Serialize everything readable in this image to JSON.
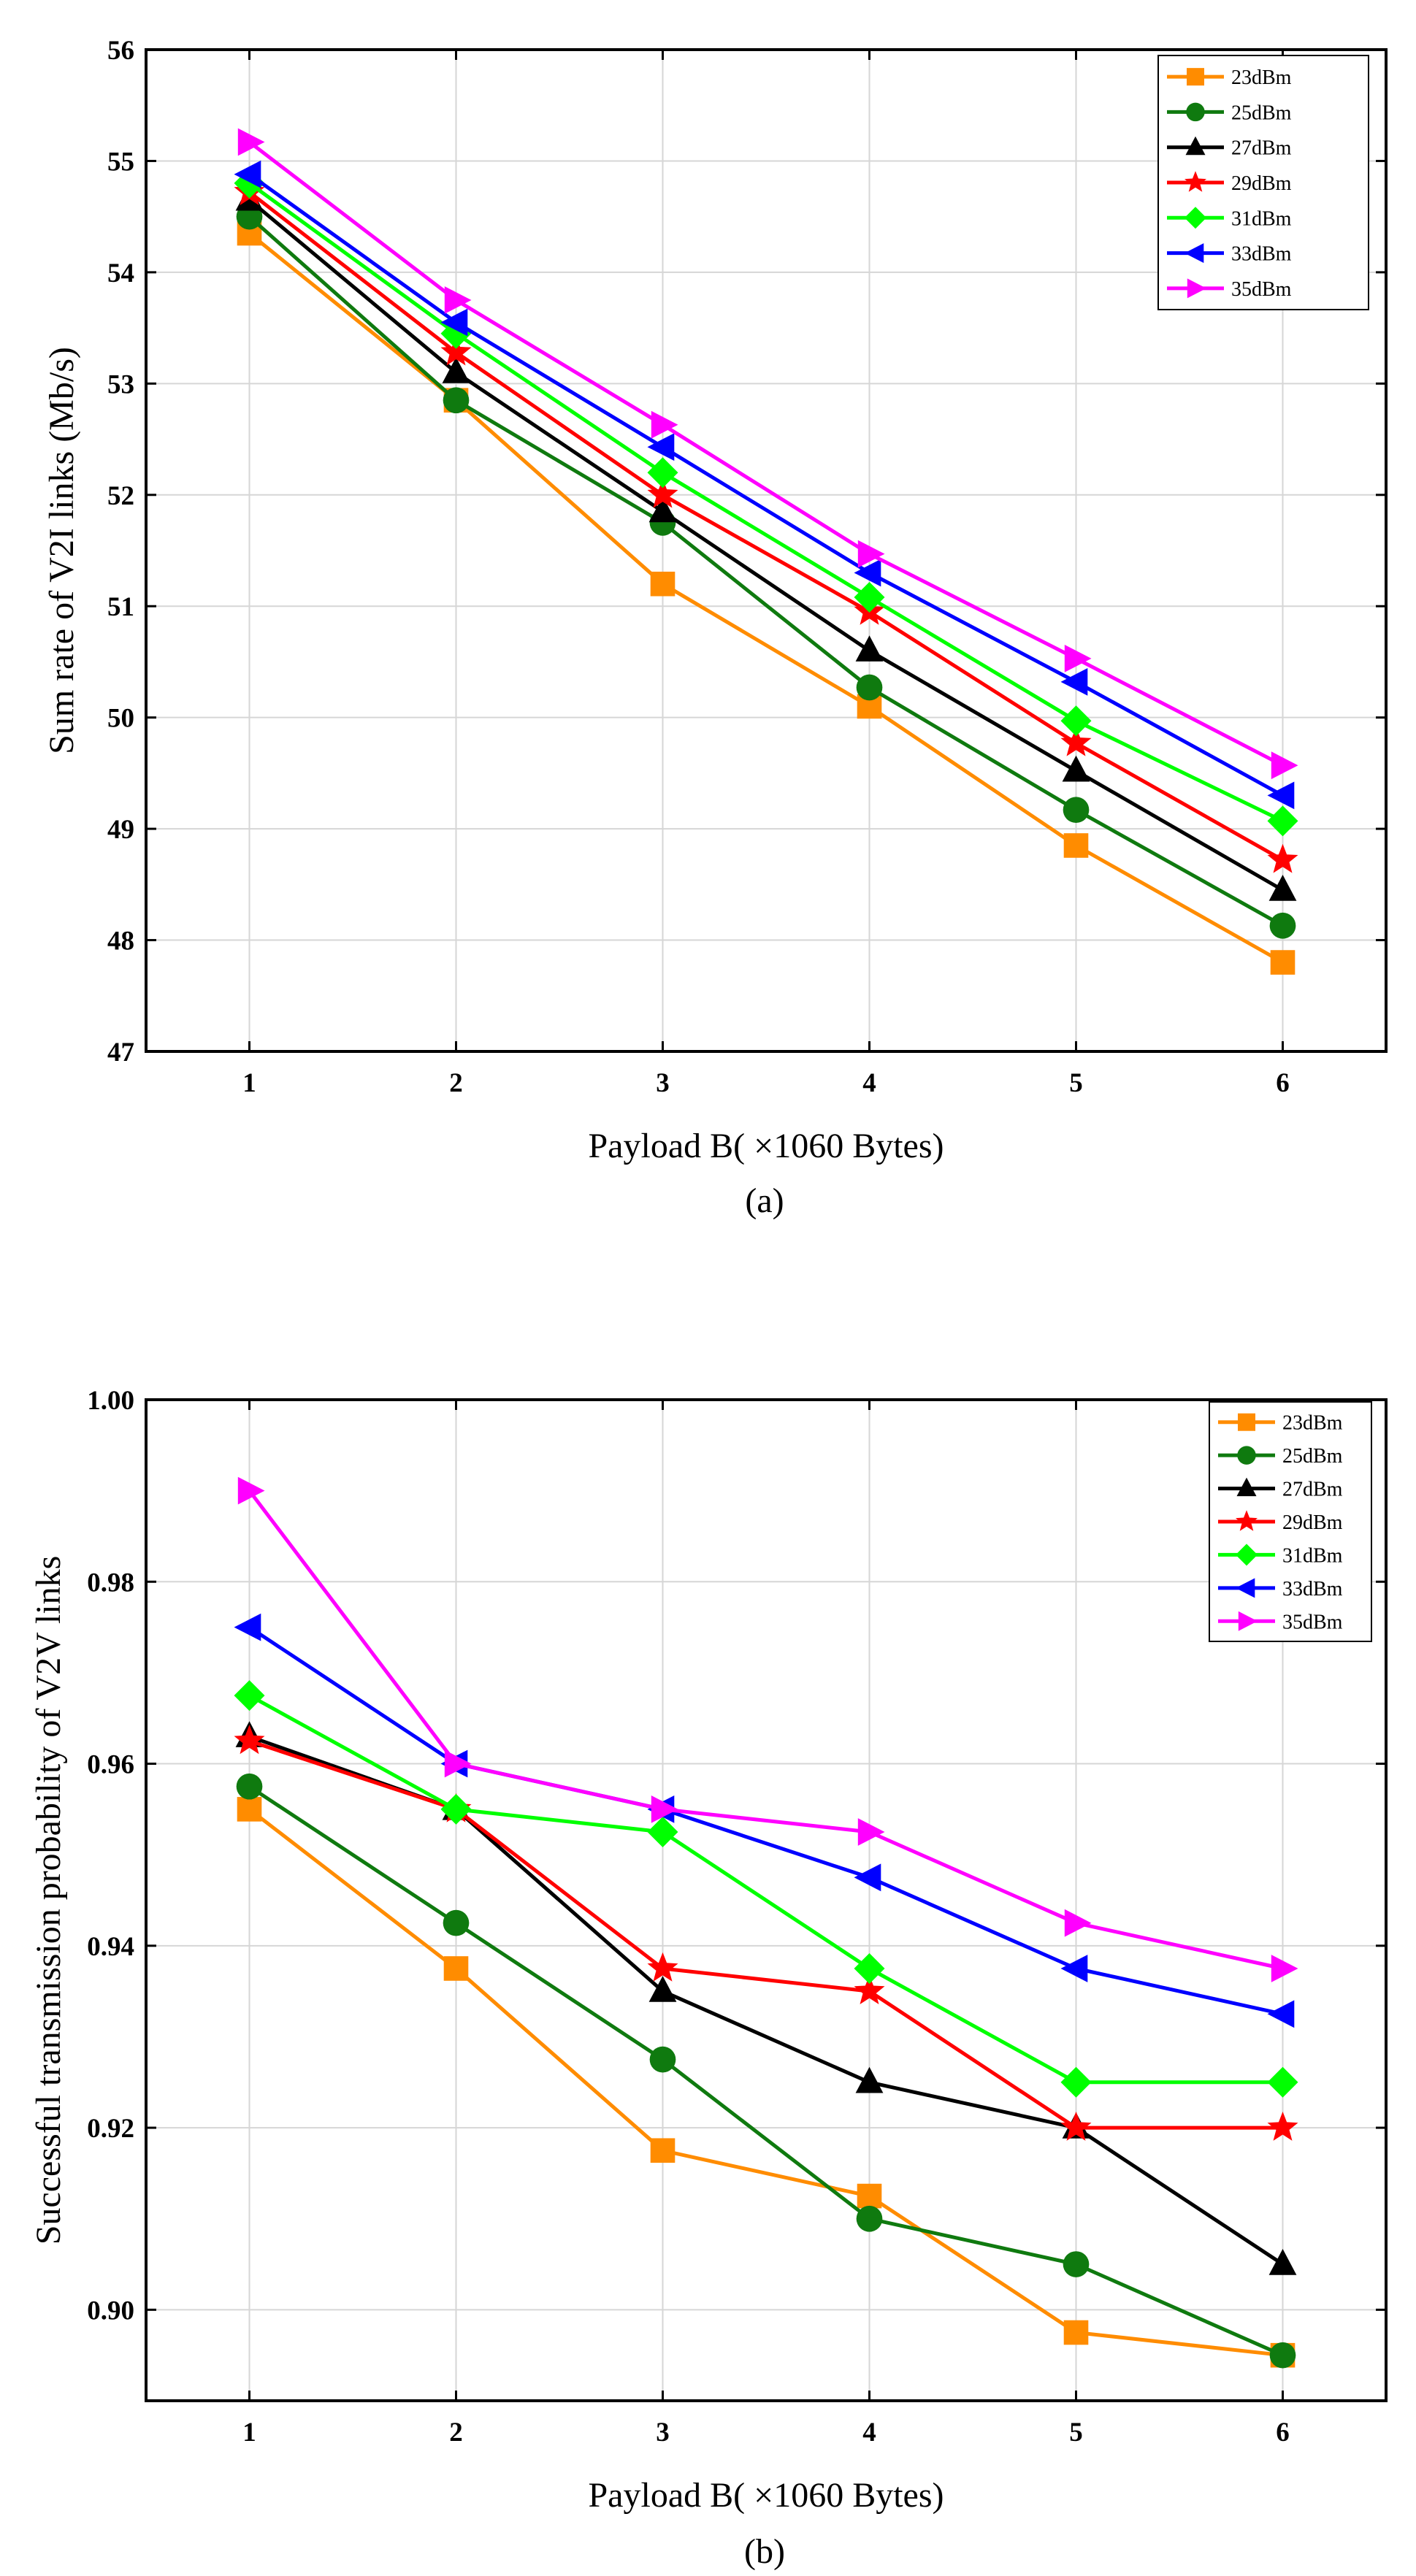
{
  "figure": {
    "caption_a": "(a)",
    "caption_b": "(b)"
  },
  "chart_data": [
    {
      "type": "line",
      "title": "",
      "xlabel": "Payload B( ×1060 Bytes)",
      "ylabel": "Sum rate of V2I links (Mb/s)",
      "x": [
        1,
        2,
        3,
        4,
        5,
        6
      ],
      "xlim": [
        0.5,
        6.5
      ],
      "ylim": [
        47,
        56
      ],
      "xticks": [
        "1",
        "2",
        "3",
        "4",
        "5",
        "6"
      ],
      "yticks": [
        "47",
        "48",
        "49",
        "50",
        "51",
        "52",
        "53",
        "54",
        "55",
        "56"
      ],
      "grid": true,
      "legend_position": "top-right",
      "series": [
        {
          "name": "23dBm",
          "color": "#FF8C00",
          "marker": "square",
          "values": [
            54.35,
            52.85,
            51.2,
            50.1,
            48.85,
            47.8
          ]
        },
        {
          "name": "25dBm",
          "color": "#0F7A0F",
          "marker": "circle",
          "values": [
            54.5,
            52.85,
            51.75,
            50.27,
            49.17,
            48.13
          ]
        },
        {
          "name": "27dBm",
          "color": "#000000",
          "marker": "triangle-up",
          "values": [
            54.65,
            53.1,
            51.85,
            50.6,
            49.52,
            48.45
          ]
        },
        {
          "name": "29dBm",
          "color": "#FF0000",
          "marker": "star",
          "values": [
            54.72,
            53.28,
            52.0,
            50.95,
            49.77,
            48.72
          ]
        },
        {
          "name": "31dBm",
          "color": "#00FF00",
          "marker": "diamond",
          "values": [
            54.8,
            53.45,
            52.2,
            51.08,
            49.97,
            49.07
          ]
        },
        {
          "name": "33dBm",
          "color": "#0000FF",
          "marker": "triangle-left",
          "values": [
            54.88,
            53.55,
            52.43,
            51.3,
            50.32,
            49.3
          ]
        },
        {
          "name": "35dBm",
          "color": "#FF00FF",
          "marker": "triangle-right",
          "values": [
            55.17,
            53.75,
            52.63,
            51.47,
            50.53,
            49.57
          ]
        }
      ]
    },
    {
      "type": "line",
      "title": "",
      "xlabel": "Payload B( ×1060 Bytes)",
      "ylabel": "Successful transmission probability of V2V links",
      "x": [
        1,
        2,
        3,
        4,
        5,
        6
      ],
      "xlim": [
        0.5,
        6.5
      ],
      "ylim": [
        0.89,
        1.0
      ],
      "xticks": [
        "1",
        "2",
        "3",
        "4",
        "5",
        "6"
      ],
      "yticks": [
        "0.90",
        "0.92",
        "0.94",
        "0.96",
        "0.98",
        "1.00"
      ],
      "grid": true,
      "legend_position": "top-right",
      "series": [
        {
          "name": "23dBm",
          "color": "#FF8C00",
          "marker": "square",
          "values": [
            0.955,
            0.9375,
            0.9175,
            0.9125,
            0.8975,
            0.895
          ]
        },
        {
          "name": "25dBm",
          "color": "#0F7A0F",
          "marker": "circle",
          "values": [
            0.9575,
            0.9425,
            0.9275,
            0.91,
            0.905,
            0.895
          ]
        },
        {
          "name": "27dBm",
          "color": "#000000",
          "marker": "triangle-up",
          "values": [
            0.963,
            0.955,
            0.935,
            0.925,
            0.92,
            0.905
          ]
        },
        {
          "name": "29dBm",
          "color": "#FF0000",
          "marker": "star",
          "values": [
            0.9625,
            0.955,
            0.9375,
            0.935,
            0.92,
            0.92
          ]
        },
        {
          "name": "31dBm",
          "color": "#00FF00",
          "marker": "diamond",
          "values": [
            0.9675,
            0.955,
            0.9525,
            0.9375,
            0.925,
            0.925
          ]
        },
        {
          "name": "33dBm",
          "color": "#0000FF",
          "marker": "triangle-left",
          "values": [
            0.975,
            0.96,
            0.955,
            0.9475,
            0.9375,
            0.9325
          ]
        },
        {
          "name": "35dBm",
          "color": "#FF00FF",
          "marker": "triangle-right",
          "values": [
            0.99,
            0.96,
            0.955,
            0.9525,
            0.9425,
            0.9375
          ]
        }
      ]
    }
  ]
}
